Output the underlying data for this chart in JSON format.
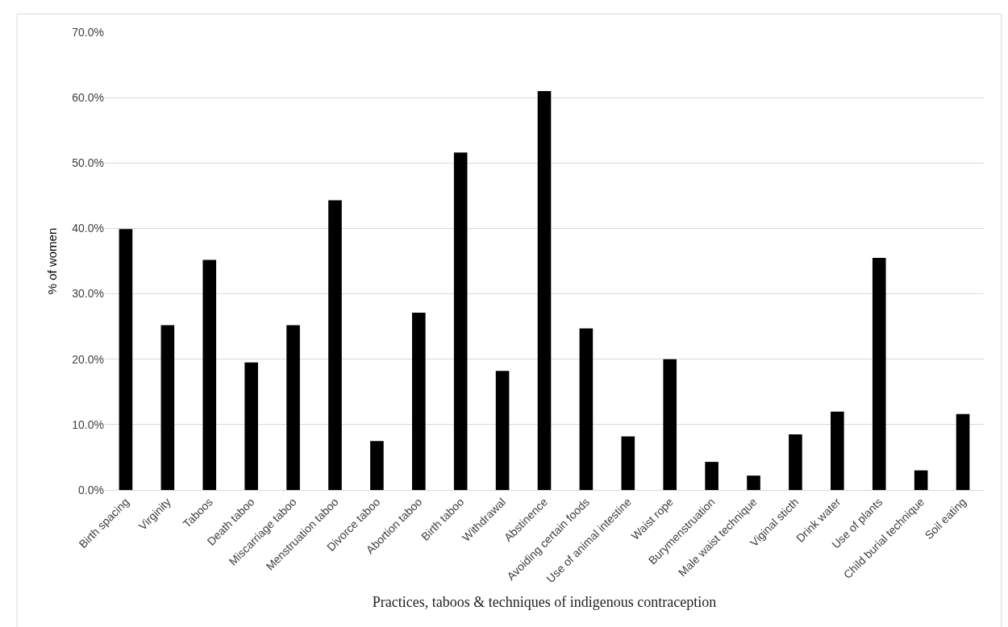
{
  "chart_data": {
    "type": "bar",
    "xlabel": "Practices, taboos & techniques of indigenous contraception",
    "ylabel": "% of women",
    "categories": [
      "Birth spacing",
      "Virginity",
      "Taboos",
      "Death taboo",
      "Miscarriage taboo",
      "Menstruation taboo",
      "Divorce taboo",
      "Abortion taboo",
      "Birth taboo",
      "Withdrawal",
      "Abstinence",
      "Avoiding certain foods",
      "Use of animal intestine",
      "Waist rope",
      "Burymenstruation",
      "Male waist technique",
      "Viginal sticth",
      "Drink water",
      "Use of plants",
      "Child burial technique",
      "Soil eating"
    ],
    "values": [
      39.9,
      25.2,
      35.2,
      19.5,
      25.2,
      44.3,
      7.5,
      27.1,
      51.6,
      18.2,
      61.0,
      24.7,
      8.2,
      20.0,
      4.3,
      2.2,
      8.5,
      12.0,
      35.5,
      3.0,
      11.6
    ],
    "color": "#000000",
    "ylim": [
      0,
      70
    ],
    "yticks": [
      {
        "value": 0,
        "label": "0.0%"
      },
      {
        "value": 10,
        "label": "10.0%"
      },
      {
        "value": 20,
        "label": "20.0%"
      },
      {
        "value": 30,
        "label": "30.0%"
      },
      {
        "value": 40,
        "label": "40.0%"
      },
      {
        "value": 50,
        "label": "50.0%"
      },
      {
        "value": 60,
        "label": "60.0%"
      },
      {
        "value": 70,
        "label": "70.0%"
      }
    ],
    "grid": "y"
  }
}
